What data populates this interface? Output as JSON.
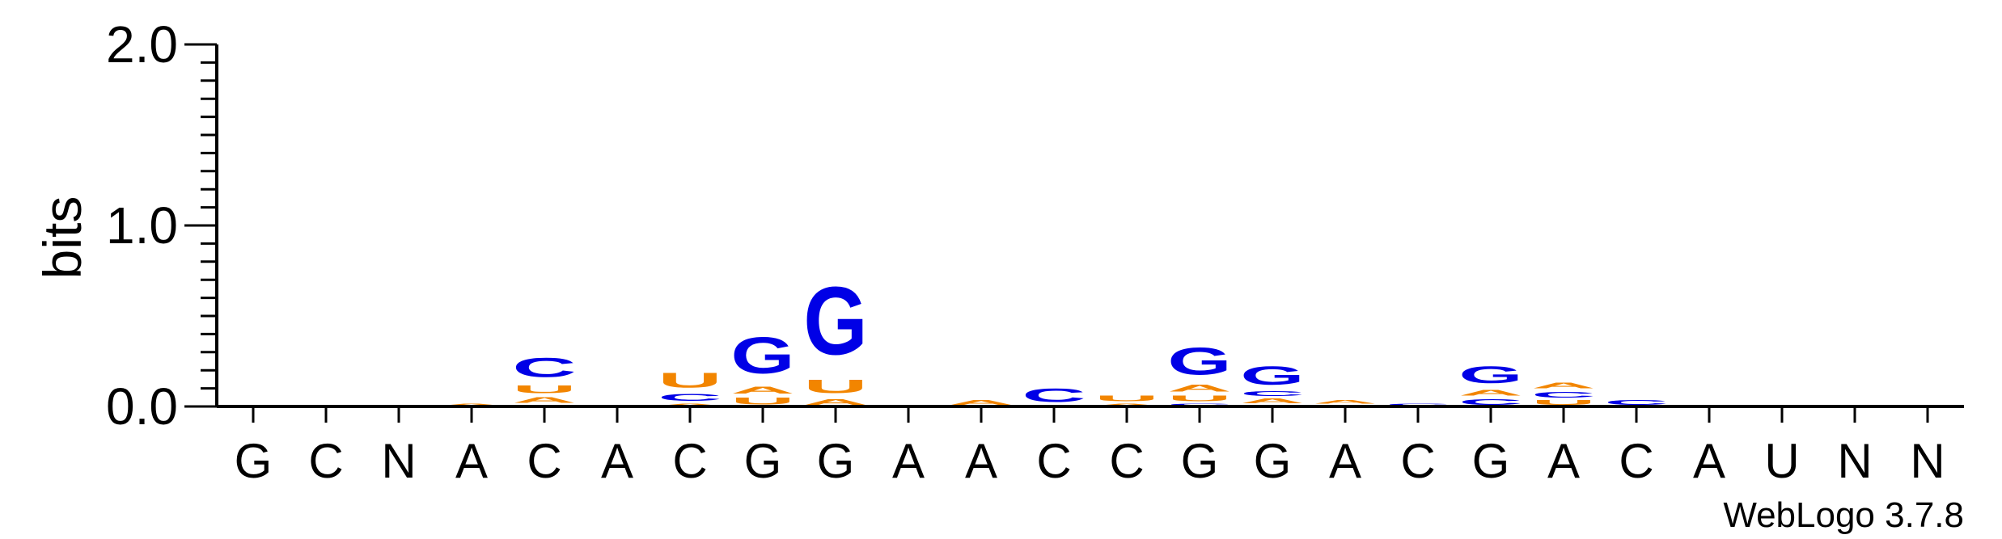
{
  "chart_data": {
    "type": "sequence-logo",
    "ylabel": "bits",
    "ylim": [
      0,
      2.0
    ],
    "yticks": [
      "0.0",
      "1.0",
      "2.0"
    ],
    "positions": [
      "G",
      "C",
      "N",
      "A",
      "C",
      "A",
      "C",
      "G",
      "G",
      "A",
      "A",
      "C",
      "C",
      "G",
      "G",
      "A",
      "C",
      "G",
      "A",
      "C",
      "A",
      "U",
      "N",
      "N"
    ],
    "colors": {
      "A": "#F28500",
      "U": "#F28500",
      "C": "#0000E6",
      "G": "#0000E6"
    },
    "stacks": [
      [],
      [],
      [],
      [
        {
          "letter": "A",
          "bits": 0.02
        }
      ],
      [
        {
          "letter": "C",
          "bits": 0.01
        },
        {
          "letter": "A",
          "bits": 0.05
        },
        {
          "letter": "U",
          "bits": 0.07
        },
        {
          "letter": "C",
          "bits": 0.17
        }
      ],
      [
        {
          "letter": "A",
          "bits": 0.01
        }
      ],
      [
        {
          "letter": "A",
          "bits": 0.02
        },
        {
          "letter": "C",
          "bits": 0.06
        },
        {
          "letter": "U",
          "bits": 0.13
        }
      ],
      [
        {
          "letter": "U",
          "bits": 0.06
        },
        {
          "letter": "A",
          "bits": 0.06
        },
        {
          "letter": "G",
          "bits": 0.32
        }
      ],
      [
        {
          "letter": "A",
          "bits": 0.05
        },
        {
          "letter": "U",
          "bits": 0.12
        },
        {
          "letter": "G",
          "bits": 0.6
        }
      ],
      [],
      [
        {
          "letter": "A",
          "bits": 0.04
        }
      ],
      [
        {
          "letter": "C",
          "bits": 0.12
        }
      ],
      [
        {
          "letter": "A",
          "bits": 0.02
        },
        {
          "letter": "U",
          "bits": 0.05
        }
      ],
      [
        {
          "letter": "C",
          "bits": 0.02
        },
        {
          "letter": "U",
          "bits": 0.05
        },
        {
          "letter": "A",
          "bits": 0.06
        },
        {
          "letter": "G",
          "bits": 0.24
        }
      ],
      [
        {
          "letter": "C",
          "bits": 0.01
        },
        {
          "letter": "A",
          "bits": 0.04
        },
        {
          "letter": "C",
          "bits": 0.04
        },
        {
          "letter": "G",
          "bits": 0.16
        }
      ],
      [
        {
          "letter": "C",
          "bits": 0.01
        },
        {
          "letter": "A",
          "bits": 0.03
        }
      ],
      [
        {
          "letter": "C",
          "bits": 0.02
        }
      ],
      [
        {
          "letter": "C",
          "bits": 0.05
        },
        {
          "letter": "A",
          "bits": 0.05
        },
        {
          "letter": "G",
          "bits": 0.15
        }
      ],
      [
        {
          "letter": "U",
          "bits": 0.04
        },
        {
          "letter": "C",
          "bits": 0.05
        },
        {
          "letter": "A",
          "bits": 0.05
        }
      ],
      [
        {
          "letter": "C",
          "bits": 0.04
        }
      ],
      [
        {
          "letter": "U",
          "bits": 0.01
        }
      ],
      [
        {
          "letter": "C",
          "bits": 0.01
        }
      ],
      [],
      []
    ]
  },
  "credit": "WebLogo 3.7.8"
}
